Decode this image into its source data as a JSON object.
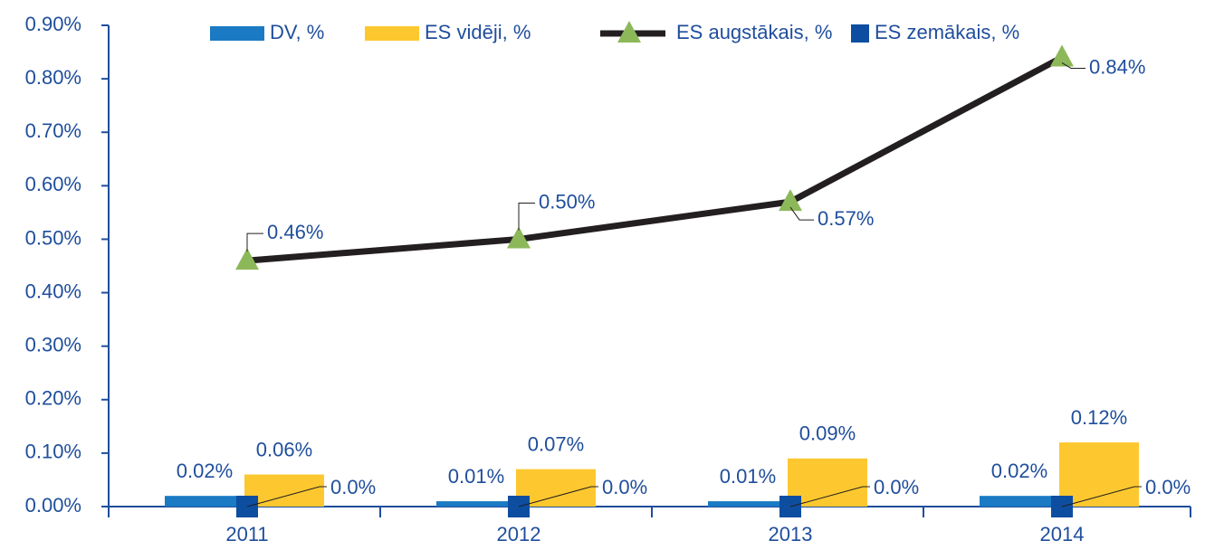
{
  "chart_data": {
    "type": "bar",
    "categories": [
      "2011",
      "2012",
      "2013",
      "2014"
    ],
    "ylim": [
      0,
      0.9
    ],
    "yticks": [
      {
        "value": 0,
        "label": "0.00%"
      },
      {
        "value": 0.1,
        "label": "0.10%"
      },
      {
        "value": 0.2,
        "label": "0.20%"
      },
      {
        "value": 0.3,
        "label": "0.30%"
      },
      {
        "value": 0.4,
        "label": "0.40%"
      },
      {
        "value": 0.5,
        "label": "0.50%"
      },
      {
        "value": 0.6,
        "label": "0.60%"
      },
      {
        "value": 0.7,
        "label": "0.70%"
      },
      {
        "value": 0.8,
        "label": "0.80%"
      },
      {
        "value": 0.9,
        "label": "0.90%"
      }
    ],
    "legend": "top",
    "series": [
      {
        "name": "DV, %",
        "type": "bar",
        "color": "#1a7ac4",
        "values": [
          0.02,
          0.01,
          0.01,
          0.02
        ],
        "value_labels": [
          "0.02%",
          "0.01%",
          "0.01%",
          "0.02%"
        ]
      },
      {
        "name": "ES vidēji, %",
        "type": "bar",
        "color": "#fdc82f",
        "values": [
          0.06,
          0.07,
          0.09,
          0.12
        ],
        "value_labels": [
          "0.06%",
          "0.07%",
          "0.09%",
          "0.12%"
        ]
      },
      {
        "name": "ES augstākais, %",
        "type": "line",
        "color": "#231f20",
        "marker": "triangle",
        "marker_color": "#8db85a",
        "values": [
          0.46,
          0.5,
          0.57,
          0.84
        ],
        "value_labels": [
          "0.46%",
          "0.50%",
          "0.57%",
          "0.84%"
        ]
      },
      {
        "name": "ES zemākais, %",
        "type": "line",
        "show_line": false,
        "color": "#0d4ea0",
        "marker": "square",
        "marker_color": "#0d4ea0",
        "values": [
          0,
          0,
          0,
          0
        ],
        "value_labels": [
          "0.0%",
          "0.0%",
          "0.0%",
          "0.0%"
        ]
      }
    ]
  }
}
